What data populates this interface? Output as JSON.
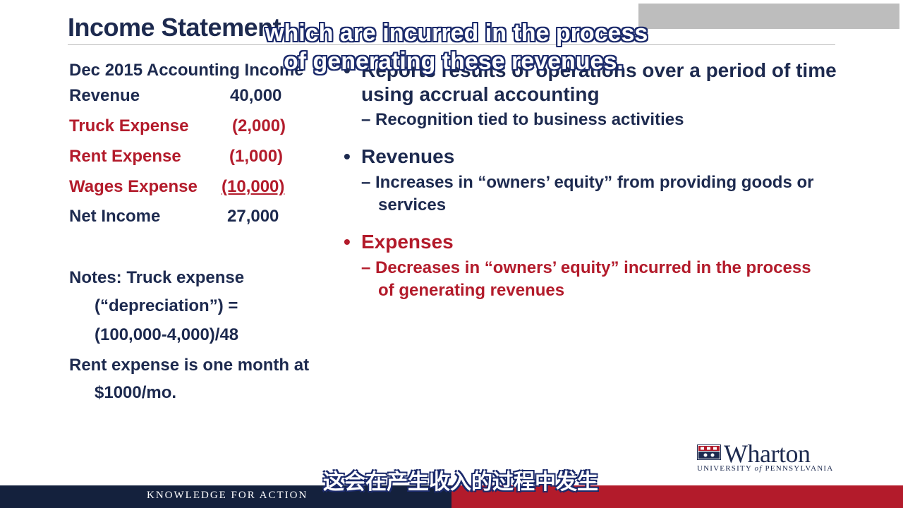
{
  "slide": {
    "title": "Income Statement",
    "left": {
      "heading": "Dec 2015 Accounting Income",
      "rows": [
        {
          "label": "Revenue",
          "value": "40,000"
        },
        {
          "label": "Truck Expense",
          "value": "(2,000)"
        },
        {
          "label": "Rent Expense",
          "value": "(1,000)"
        },
        {
          "label": "Wages Expense",
          "value": "(10,000)"
        },
        {
          "label": "Net Income",
          "value": "27,000"
        }
      ],
      "notes": [
        "Notes: Truck expense",
        "(“depreciation”) =",
        "(100,000-4,000)/48",
        "Rent expense is one month at",
        "$1000/mo."
      ]
    },
    "right": {
      "b1_line1": "Reports results of operations over a period of time",
      "b1_line2": "using accrual accounting",
      "b1_sub": "– Recognition tied to business activities",
      "b2_title": "Revenues",
      "b2_sub1": "– Increases in “owners’ equity” from providing goods or",
      "b2_sub2": "services",
      "b3_title": "Expenses",
      "b3_sub1": "– Decreases in “owners’ equity” incurred in the process",
      "b3_sub2": "of generating revenues",
      "bullet": "•"
    }
  },
  "subtitles": {
    "en_line1": "which are incurred in the process",
    "en_line2": "of generating these revenues.",
    "cn": "这会在产生收入的过程中发生"
  },
  "footer": {
    "tagline": "KNOWLEDGE FOR ACTION"
  },
  "logo": {
    "name": "Wharton",
    "university_prefix": "UNIVERSITY ",
    "university_of": "of",
    "university_suffix": " PENNSYLVANIA"
  },
  "colors": {
    "navy": "#1d2a4f",
    "red": "#b31b2b",
    "footer_navy": "#14213d"
  }
}
